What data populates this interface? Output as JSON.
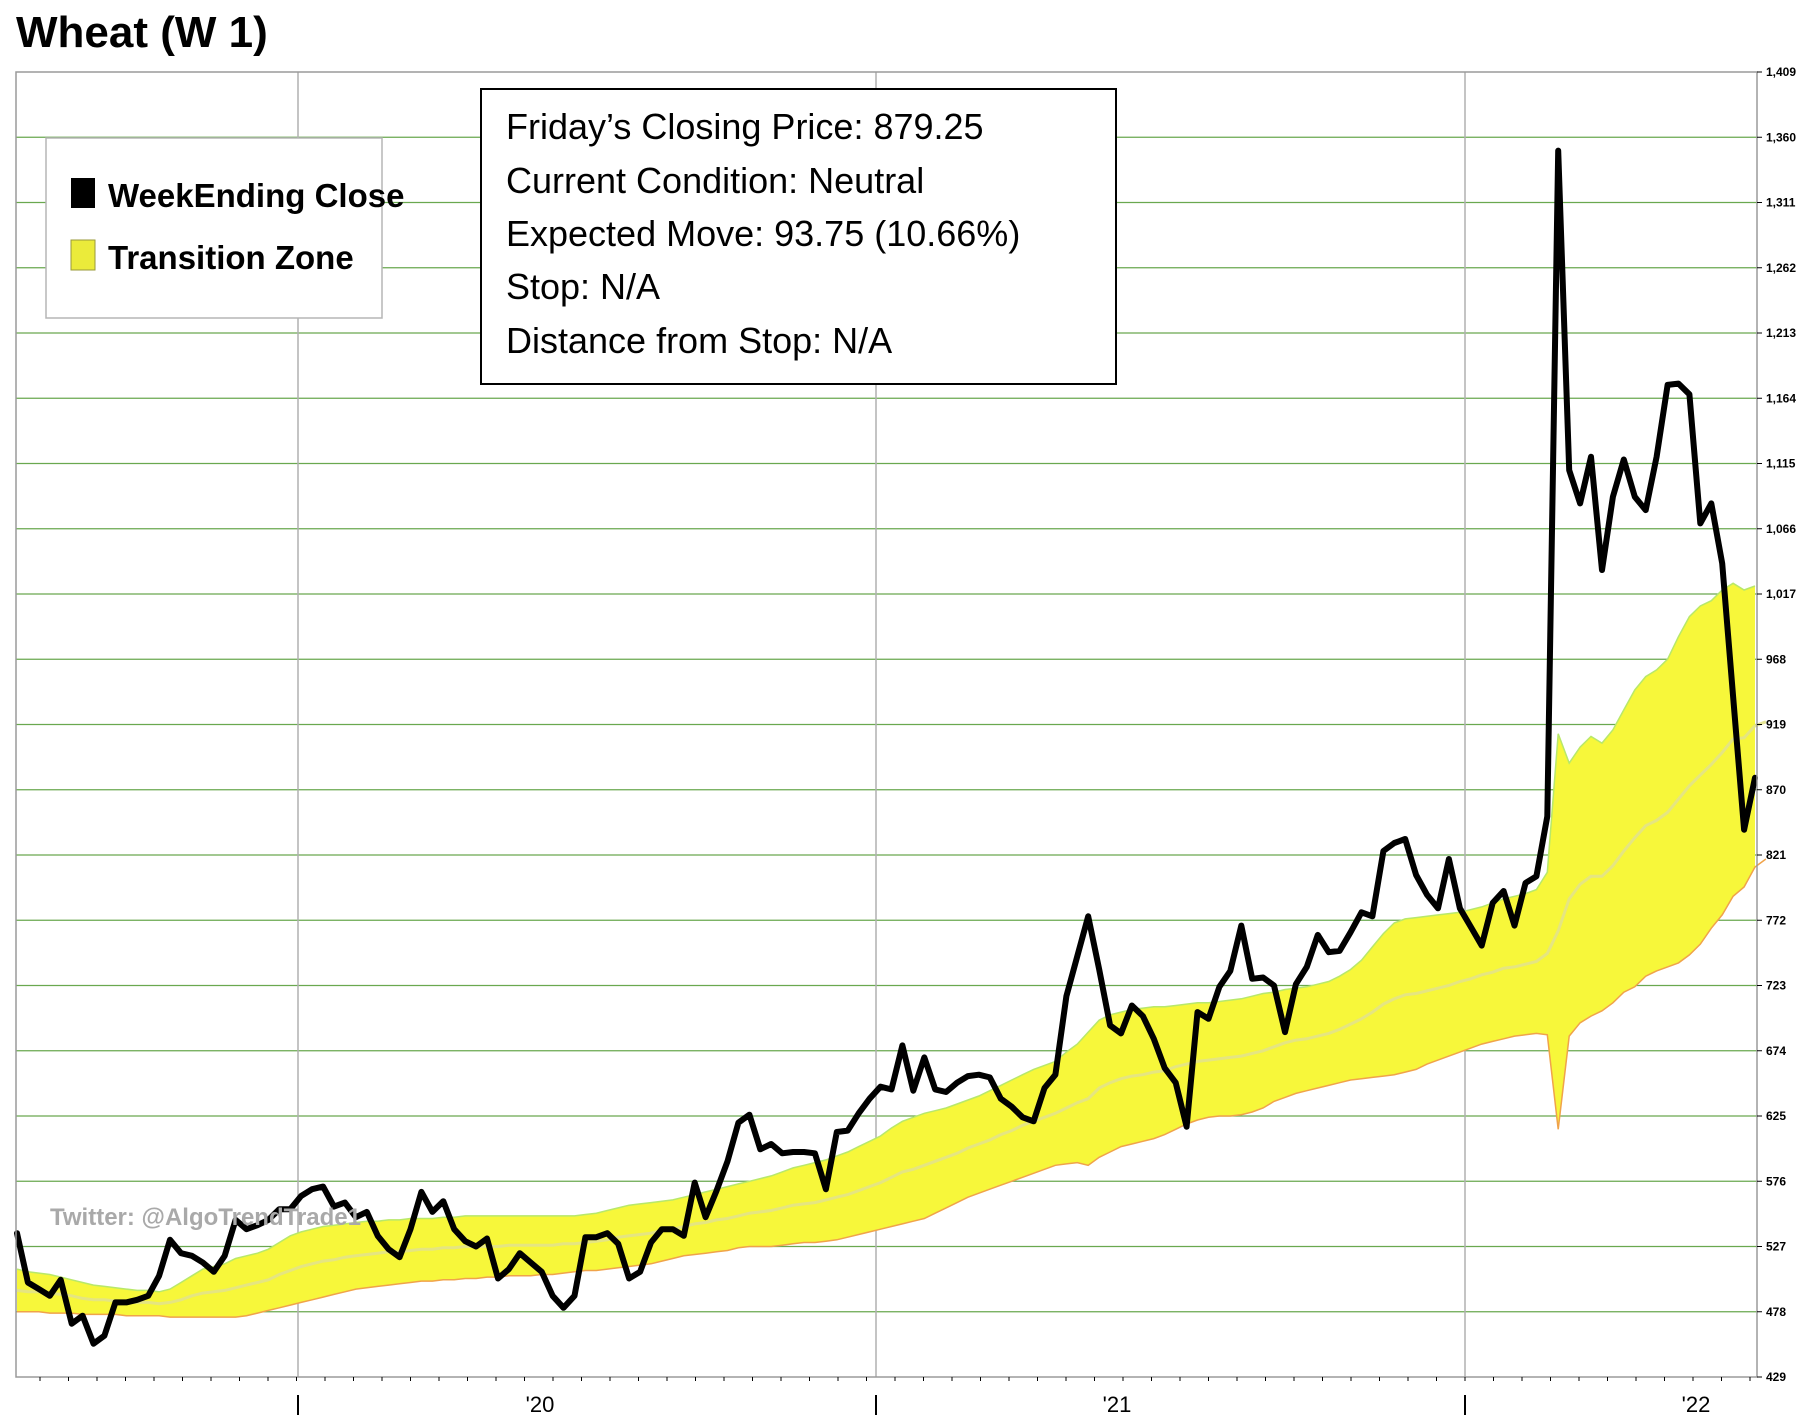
{
  "chart_data": {
    "type": "line",
    "title": "Wheat (W 1)",
    "ylim": [
      429,
      1409
    ],
    "y_ticks": [
      429,
      478,
      527,
      576,
      625,
      674,
      723,
      772,
      821,
      870,
      919,
      968,
      1017,
      1066,
      1115,
      1164,
      1213,
      1262,
      1311,
      1360,
      1409
    ],
    "y_tick_labels": [
      "429",
      "478",
      "527",
      "576",
      "625",
      "674",
      "723",
      "772",
      "821",
      "870",
      "919",
      "968",
      "1,017",
      "1,066",
      "1,115",
      "1,164",
      "1,213",
      "1,262",
      "1,311",
      "1,360",
      "1,409"
    ],
    "x_labels": [
      "'20",
      "'21",
      "'22"
    ],
    "grid": true,
    "legend_position": "top-left",
    "legend": [
      {
        "name": "WeekEnding Close",
        "color": "#000000"
      },
      {
        "name": "Transition Zone",
        "color": "#ebeb3a"
      }
    ],
    "series": [
      {
        "name": "WeekEnding Close",
        "color": "#000000",
        "values": [
          537,
          500,
          495,
          490,
          502,
          469,
          475,
          454,
          460,
          485,
          485,
          487,
          490,
          505,
          532,
          522,
          520,
          515,
          508,
          520,
          547,
          540,
          543,
          547,
          555,
          555,
          565,
          570,
          572,
          557,
          560,
          549,
          553,
          535,
          525,
          519,
          540,
          568,
          553,
          561,
          540,
          531,
          527,
          533,
          503,
          510,
          522,
          515,
          508,
          490,
          481,
          490,
          534,
          534,
          537,
          529,
          503,
          508,
          530,
          540,
          540,
          535,
          575,
          549,
          569,
          591,
          620,
          626,
          600,
          604,
          597,
          598,
          598,
          597,
          570,
          613,
          614,
          627,
          638,
          647,
          645,
          678,
          644,
          669,
          645,
          643,
          650,
          655,
          656,
          654,
          638,
          632,
          624,
          621,
          646,
          656,
          715,
          745,
          775,
          735,
          693,
          687,
          708,
          700,
          683,
          661,
          650,
          617,
          703,
          698,
          722,
          734,
          768,
          728,
          729,
          723,
          688,
          724,
          737,
          761,
          748,
          749,
          763,
          778,
          775,
          824,
          830,
          833,
          806,
          791,
          781,
          818,
          781,
          767,
          753,
          785,
          794,
          768,
          800,
          805,
          850,
          1350,
          1110,
          1085,
          1120,
          1035,
          1090,
          1118,
          1090,
          1080,
          1120,
          1174,
          1175,
          1167,
          1070,
          1085,
          1040,
          940,
          840,
          879
        ]
      },
      {
        "name": "Transition Zone (upper)",
        "color": "#b8e86a",
        "values": [
          510,
          508,
          507,
          506,
          504,
          502,
          500,
          498,
          497,
          496,
          495,
          494,
          494,
          493,
          495,
          500,
          505,
          510,
          512,
          514,
          518,
          520,
          522,
          525,
          530,
          535,
          538,
          540,
          542,
          543,
          544,
          545,
          546,
          546,
          547,
          547,
          548,
          548,
          548,
          549,
          549,
          550,
          550,
          550,
          550,
          550,
          550,
          550,
          550,
          550,
          550,
          550,
          551,
          552,
          554,
          556,
          558,
          559,
          560,
          561,
          562,
          564,
          566,
          568,
          570,
          572,
          574,
          576,
          578,
          580,
          583,
          586,
          588,
          590,
          592,
          595,
          598,
          602,
          606,
          610,
          616,
          621,
          624,
          627,
          629,
          631,
          634,
          637,
          640,
          644,
          648,
          652,
          656,
          660,
          663,
          666,
          673,
          679,
          688,
          697,
          701,
          703,
          705,
          706,
          707,
          707,
          708,
          709,
          710,
          710,
          711,
          712,
          713,
          715,
          717,
          718,
          720,
          721,
          722,
          724,
          726,
          730,
          735,
          742,
          752,
          762,
          770,
          773,
          774,
          775,
          776,
          777,
          778,
          780,
          782,
          785,
          788,
          790,
          792,
          795,
          808,
          912,
          890,
          902,
          910,
          905,
          915,
          930,
          945,
          955,
          960,
          968,
          985,
          1000,
          1008,
          1012,
          1020,
          1025,
          1020,
          1023
        ]
      },
      {
        "name": "Transition Zone (lower)",
        "color": "#f0a34a",
        "values": [
          478,
          478,
          478,
          477,
          477,
          477,
          476,
          476,
          476,
          476,
          475,
          475,
          475,
          475,
          474,
          474,
          474,
          474,
          474,
          474,
          474,
          475,
          477,
          479,
          481,
          483,
          485,
          487,
          489,
          491,
          493,
          495,
          496,
          497,
          498,
          499,
          500,
          501,
          501,
          502,
          502,
          503,
          503,
          504,
          504,
          505,
          505,
          505,
          506,
          506,
          507,
          508,
          509,
          509,
          510,
          511,
          512,
          513,
          514,
          516,
          518,
          520,
          521,
          522,
          523,
          524,
          526,
          527,
          527,
          527,
          528,
          529,
          530,
          530,
          531,
          532,
          534,
          536,
          538,
          540,
          542,
          544,
          546,
          548,
          552,
          556,
          560,
          564,
          567,
          570,
          573,
          576,
          579,
          582,
          585,
          588,
          589,
          590,
          588,
          594,
          598,
          602,
          604,
          606,
          608,
          611,
          615,
          619,
          622,
          624,
          625,
          625,
          626,
          628,
          631,
          636,
          639,
          642,
          644,
          646,
          648,
          650,
          652,
          653,
          654,
          655,
          656,
          658,
          660,
          664,
          667,
          670,
          673,
          676,
          679,
          681,
          683,
          685,
          686,
          687,
          686,
          615,
          685,
          695,
          700,
          704,
          710,
          718,
          722,
          730,
          734,
          737,
          740,
          746,
          754,
          766,
          776,
          790,
          797,
          812,
          818
        ]
      },
      {
        "name": "Transition Zone (midline)",
        "color": "#e2e28a",
        "values": [
          494,
          493,
          493,
          492,
          491,
          490,
          488,
          487,
          487,
          486,
          485,
          485,
          485,
          484,
          485,
          487,
          490,
          492,
          493,
          494,
          496,
          498,
          500,
          502,
          506,
          509,
          512,
          514,
          516,
          517,
          519,
          520,
          521,
          522,
          523,
          523,
          524,
          525,
          525,
          526,
          526,
          527,
          527,
          527,
          527,
          528,
          528,
          528,
          528,
          528,
          529,
          529,
          530,
          531,
          532,
          534,
          535,
          536,
          537,
          539,
          540,
          542,
          544,
          545,
          547,
          548,
          550,
          552,
          553,
          554,
          556,
          558,
          559,
          560,
          562,
          564,
          566,
          569,
          572,
          575,
          579,
          583,
          585,
          588,
          591,
          594,
          597,
          601,
          604,
          607,
          611,
          614,
          618,
          621,
          624,
          627,
          631,
          635,
          638,
          646,
          650,
          653,
          655,
          656,
          658,
          659,
          662,
          664,
          666,
          667,
          668,
          669,
          670,
          672,
          674,
          677,
          680,
          682,
          683,
          685,
          687,
          690,
          694,
          698,
          703,
          709,
          713,
          716,
          717,
          719,
          721,
          723,
          726,
          728,
          731,
          733,
          736,
          737,
          739,
          741,
          747,
          764,
          788,
          799,
          805,
          805,
          813,
          824,
          834,
          843,
          847,
          853,
          863,
          873,
          881,
          889,
          898,
          908,
          909,
          918,
          921
        ]
      }
    ]
  },
  "info_box": {
    "lines": [
      "Friday’s Closing Price: 879.25",
      "Current Condition: Neutral",
      "Expected Move: 93.75 (10.66%)",
      "Stop: N/A",
      "Distance from Stop: N/A"
    ]
  },
  "watermark": "Twitter: @AlgoTrendTrade1",
  "colors": {
    "grid_horizontal": "#6aa84f",
    "grid_vertical": "#b0b0b0",
    "zone_fill": "#f7f73a",
    "zone_upper_edge": "#b8e86a",
    "zone_lower_edge": "#f0a34a",
    "close_line": "#000000"
  }
}
